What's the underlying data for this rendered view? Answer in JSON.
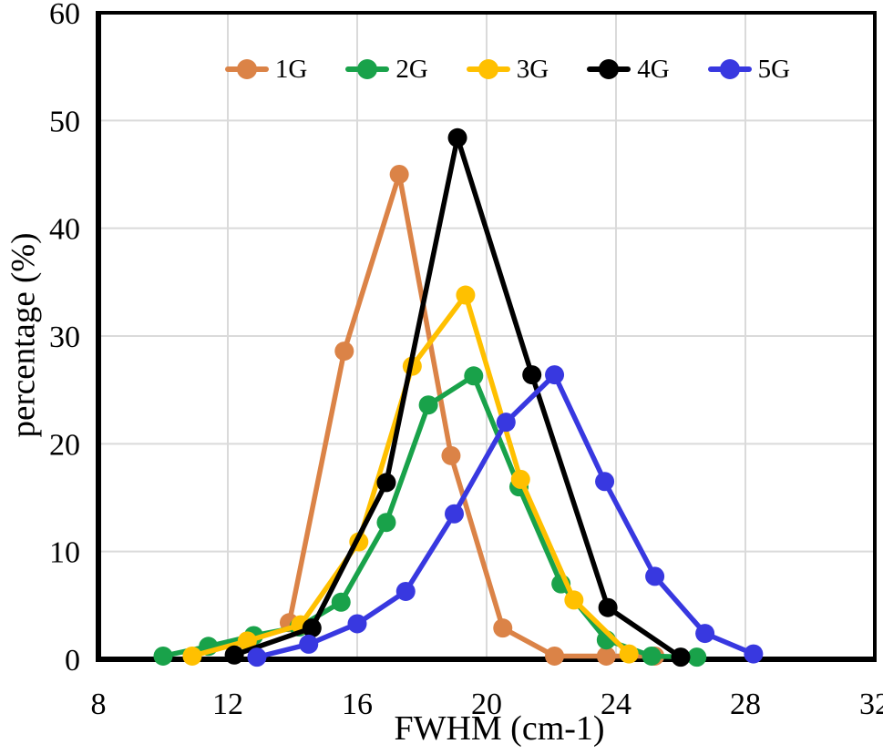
{
  "axes": {
    "x": {
      "label": "FWHM (cm-1)",
      "min": 8,
      "max": 32,
      "tick_step": 4,
      "ticks": [
        8,
        12,
        16,
        20,
        24,
        28,
        32
      ]
    },
    "y": {
      "label": "percentage (%)",
      "min": 0,
      "max": 60,
      "tick_step": 10,
      "ticks": [
        0,
        10,
        20,
        30,
        40,
        50,
        60
      ]
    }
  },
  "legend": {
    "entries": [
      "1G",
      "2G",
      "3G",
      "4G",
      "5G"
    ],
    "position": "top-center-inside"
  },
  "style": {
    "grid_color": "#dadada",
    "frame_color": "#000000",
    "background": "#ffffff"
  },
  "chart_data": {
    "type": "line",
    "title": "",
    "xlabel": "FWHM (cm-1)",
    "ylabel": "percentage (%)",
    "xlim": [
      8,
      32
    ],
    "ylim": [
      0,
      60
    ],
    "grid": true,
    "legend_position": "top-center-inside",
    "series": [
      {
        "name": "1G",
        "color": "#db8347",
        "points": [
          [
            13.9,
            3.4
          ],
          [
            15.6,
            28.6
          ],
          [
            17.3,
            45.0
          ],
          [
            18.9,
            18.9
          ],
          [
            20.5,
            2.9
          ],
          [
            22.1,
            0.3
          ],
          [
            23.7,
            0.3
          ],
          [
            25.2,
            0.3
          ]
        ]
      },
      {
        "name": "2G",
        "color": "#19a24a",
        "points": [
          [
            10.0,
            0.3
          ],
          [
            11.4,
            1.2
          ],
          [
            12.8,
            2.2
          ],
          [
            14.2,
            3.0
          ],
          [
            15.5,
            5.3
          ],
          [
            16.9,
            12.7
          ],
          [
            18.2,
            23.6
          ],
          [
            19.6,
            26.3
          ],
          [
            21.0,
            16.0
          ],
          [
            22.3,
            7.0
          ],
          [
            23.7,
            1.8
          ],
          [
            25.1,
            0.3
          ],
          [
            26.5,
            0.2
          ]
        ]
      },
      {
        "name": "3G",
        "color": "#ffc000",
        "points": [
          [
            10.9,
            0.3
          ],
          [
            12.6,
            1.7
          ],
          [
            14.25,
            3.2
          ],
          [
            16.05,
            10.9
          ],
          [
            17.7,
            27.2
          ],
          [
            19.35,
            33.8
          ],
          [
            21.05,
            16.7
          ],
          [
            22.7,
            5.5
          ],
          [
            24.4,
            0.5
          ]
        ]
      },
      {
        "name": "4G",
        "color": "#000000",
        "points": [
          [
            12.2,
            0.4
          ],
          [
            14.6,
            2.9
          ],
          [
            16.9,
            16.4
          ],
          [
            19.1,
            48.4
          ],
          [
            21.4,
            26.4
          ],
          [
            23.75,
            4.8
          ],
          [
            26.0,
            0.2
          ]
        ]
      },
      {
        "name": "5G",
        "color": "#3838e0",
        "points": [
          [
            12.9,
            0.2
          ],
          [
            14.5,
            1.4
          ],
          [
            16.0,
            3.3
          ],
          [
            17.5,
            6.3
          ],
          [
            19.0,
            13.5
          ],
          [
            20.6,
            22.0
          ],
          [
            22.1,
            26.4
          ],
          [
            23.65,
            16.5
          ],
          [
            25.2,
            7.7
          ],
          [
            26.75,
            2.4
          ],
          [
            28.25,
            0.5
          ]
        ]
      }
    ]
  }
}
